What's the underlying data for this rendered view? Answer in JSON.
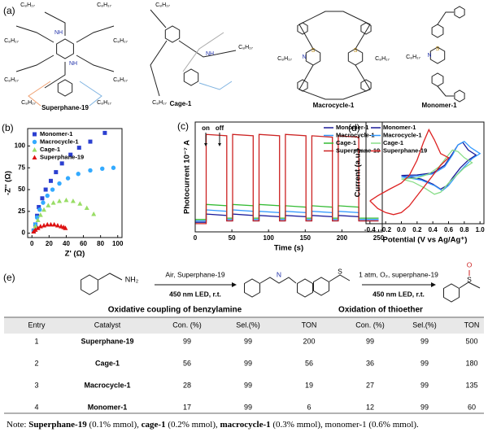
{
  "panel_a": {
    "label": "(a)",
    "substituent": "C₈H₁₇",
    "amine": "NH",
    "heteroatoms": [
      "N",
      "S"
    ],
    "molecules": [
      "Superphane-19",
      "Cage-1",
      "Macrocycle-1",
      "Monomer-1"
    ]
  },
  "chart_data": [
    {
      "type": "scatter",
      "label": "(b)",
      "xlabel": "Z' (Ω)",
      "ylabel": "-Z'' (Ω)",
      "xlim": [
        -5,
        105
      ],
      "ylim": [
        -5,
        120
      ],
      "xticks": [
        0,
        20,
        40,
        60,
        80,
        100
      ],
      "yticks": [
        0,
        25,
        50,
        75,
        100
      ],
      "legend": "upper left",
      "series": [
        {
          "name": "Monomer-1",
          "color": "#2b3fd0",
          "marker": "square",
          "x": [
            2,
            4,
            6,
            8,
            12,
            16,
            22,
            28,
            35,
            45,
            55,
            68,
            85
          ],
          "values": [
            3,
            10,
            20,
            30,
            40,
            50,
            60,
            70,
            80,
            90,
            98,
            105,
            115
          ]
        },
        {
          "name": "Macrocycle-1",
          "color": "#33aaff",
          "marker": "circle",
          "x": [
            2,
            4,
            6,
            9,
            13,
            18,
            24,
            32,
            42,
            54,
            68,
            82,
            95
          ],
          "values": [
            3,
            10,
            18,
            27,
            35,
            43,
            50,
            57,
            63,
            68,
            72,
            74,
            75
          ]
        },
        {
          "name": "Cage-1",
          "color": "#99dd66",
          "marker": "triangle",
          "x": [
            2,
            4,
            7,
            10,
            14,
            19,
            25,
            32,
            40,
            48,
            56,
            64,
            72
          ],
          "values": [
            2,
            8,
            15,
            21,
            27,
            32,
            35,
            37,
            38,
            37,
            34,
            29,
            22
          ]
        },
        {
          "name": "Superphane-19",
          "color": "#dd1111",
          "marker": "triangle",
          "x": [
            2,
            4,
            7,
            10,
            14,
            18,
            22,
            26,
            30,
            34,
            37,
            39
          ],
          "values": [
            2,
            4,
            6,
            8,
            9,
            10,
            10,
            10,
            9,
            8,
            7,
            6
          ]
        }
      ]
    },
    {
      "type": "line",
      "label": "(c)",
      "xlabel": "Time (s)",
      "ylabel": "Photocurrent 10⁻⁷ A",
      "annotations": [
        "on",
        "off"
      ],
      "xlim": [
        0,
        255
      ],
      "ylim": [
        0,
        8
      ],
      "xticks": [
        0,
        50,
        100,
        150,
        200,
        250
      ],
      "yticks": [],
      "legend": "upper right",
      "x": [
        0,
        15,
        15,
        43,
        43,
        51,
        51,
        79,
        79,
        87,
        87,
        115,
        115,
        123,
        123,
        151,
        151,
        159,
        159,
        187,
        187,
        195,
        195,
        223,
        223,
        250
      ],
      "series": [
        {
          "name": "Monomer-1",
          "color": "#1a1a99",
          "values": [
            0.7,
            0.7,
            1.3,
            1.2,
            0.8,
            0.8,
            1.3,
            1.2,
            0.8,
            0.8,
            1.2,
            1.1,
            0.8,
            0.8,
            1.2,
            1.1,
            0.8,
            0.8,
            1.2,
            1.1,
            0.8,
            0.8,
            1.2,
            1.1,
            0.8,
            0.8
          ]
        },
        {
          "name": "Macrocycle-1",
          "color": "#3399ff",
          "values": [
            0.8,
            0.8,
            1.6,
            1.5,
            0.9,
            0.9,
            1.6,
            1.5,
            0.9,
            0.9,
            1.5,
            1.4,
            0.9,
            0.9,
            1.5,
            1.4,
            0.9,
            0.9,
            1.5,
            1.4,
            0.9,
            0.9,
            1.5,
            1.4,
            0.9,
            0.9
          ]
        },
        {
          "name": "Cage-1",
          "color": "#33bb33",
          "values": [
            0.9,
            0.9,
            2.0,
            1.9,
            1.0,
            1.0,
            2.0,
            1.9,
            1.0,
            1.0,
            2.0,
            1.9,
            1.0,
            1.0,
            1.9,
            1.8,
            1.0,
            1.0,
            1.9,
            1.8,
            1.0,
            1.0,
            1.9,
            1.8,
            1.0,
            1.0
          ]
        },
        {
          "name": "Superphane-19",
          "color": "#cc2222",
          "values": [
            0.6,
            0.6,
            7.1,
            7.0,
            0.8,
            0.8,
            7.1,
            7.0,
            0.8,
            0.8,
            7.1,
            7.0,
            0.8,
            0.8,
            7.1,
            7.0,
            0.8,
            0.8,
            7.0,
            6.9,
            0.8,
            0.8,
            7.0,
            6.9,
            0.8,
            0.8
          ]
        }
      ]
    },
    {
      "type": "line",
      "label": "(d)",
      "xlabel": "Potential (V vs Ag/Ag⁺)",
      "ylabel": "Current (a.u.)",
      "xlim": [
        -0.45,
        1.05
      ],
      "ylim": [
        -1,
        1
      ],
      "xticks": [
        -0.4,
        -0.2,
        {
          "value": 0,
          "label": "0.0"
        },
        0.2,
        0.4,
        0.6,
        0.8,
        {
          "value": 1,
          "label": "1.0"
        }
      ],
      "yticks": [],
      "legend": "upper left",
      "series": [
        {
          "name": "Monomer-1",
          "color": "#1a1a99",
          "x": [
            0.0,
            0.2,
            0.4,
            0.55,
            0.65,
            0.72,
            0.78,
            0.85,
            0.95,
            0.85,
            0.75,
            0.65,
            0.58,
            0.5,
            0.4,
            0.25,
            0.1,
            0.0
          ],
          "values": [
            -0.05,
            -0.04,
            0.0,
            0.15,
            0.38,
            0.55,
            0.6,
            0.45,
            0.35,
            0.25,
            0.1,
            -0.1,
            -0.25,
            -0.32,
            -0.22,
            -0.12,
            -0.08,
            -0.05
          ]
        },
        {
          "name": "Macrocycle-1",
          "color": "#3399ff",
          "x": [
            0.0,
            0.2,
            0.4,
            0.55,
            0.65,
            0.72,
            0.8,
            0.88,
            1.0,
            0.9,
            0.8,
            0.7,
            0.6,
            0.52,
            0.42,
            0.25,
            0.1,
            0.0
          ],
          "values": [
            -0.08,
            -0.06,
            -0.02,
            0.12,
            0.35,
            0.55,
            0.62,
            0.5,
            0.38,
            0.28,
            0.12,
            -0.05,
            -0.25,
            -0.35,
            -0.25,
            -0.14,
            -0.1,
            -0.08
          ]
        },
        {
          "name": "Cage-1",
          "color": "#88dd88",
          "x": [
            0.0,
            0.2,
            0.35,
            0.48,
            0.58,
            0.65,
            0.72,
            0.8,
            0.9,
            0.8,
            0.7,
            0.6,
            0.5,
            0.42,
            0.3,
            0.15,
            0.0
          ],
          "values": [
            -0.12,
            -0.1,
            -0.02,
            0.12,
            0.32,
            0.45,
            0.42,
            0.3,
            0.2,
            0.1,
            -0.05,
            -0.2,
            -0.38,
            -0.42,
            -0.3,
            -0.18,
            -0.12
          ]
        },
        {
          "name": "Superphane-19",
          "color": "#dd2222",
          "x": [
            -0.4,
            -0.3,
            -0.15,
            0.0,
            0.1,
            0.2,
            0.28,
            0.35,
            0.42,
            0.5,
            0.6,
            0.5,
            0.4,
            0.3,
            0.2,
            0.1,
            0.0,
            -0.1,
            -0.2,
            -0.3,
            -0.4
          ],
          "values": [
            -0.55,
            -0.45,
            -0.32,
            -0.2,
            -0.05,
            0.25,
            0.6,
            0.85,
            0.65,
            0.38,
            0.3,
            0.15,
            -0.05,
            -0.25,
            -0.45,
            -0.65,
            -0.78,
            -0.82,
            -0.78,
            -0.7,
            -0.55
          ]
        }
      ]
    }
  ],
  "panel_e": {
    "label": "(e)",
    "reaction_1": {
      "reactant_group": "NH₂",
      "condition_top": "Air, Superphane-19",
      "condition_bottom": "450 nm LED, r.t.",
      "product_atom": "N"
    },
    "reaction_2": {
      "reactant_atom": "S",
      "condition_top": "1 atm, O₂, superphane-19",
      "condition_bottom": "450 nm LED, r.t.",
      "product_atoms": [
        "S",
        "O"
      ]
    },
    "table": {
      "group_titles": [
        "Oxidative coupling of benzylamine",
        "Oxidation of thioether"
      ],
      "columns": [
        "Entry",
        "Catalyst",
        "Con. (%)",
        "Sel.(%)",
        "TON",
        "Con. (%)",
        "Sel.(%)",
        "TON"
      ],
      "rows": [
        [
          1,
          "Superphane-19",
          99,
          99,
          200,
          99,
          99,
          500
        ],
        [
          2,
          "Cage-1",
          56,
          99,
          56,
          36,
          99,
          180
        ],
        [
          3,
          "Macrocycle-1",
          28,
          99,
          19,
          27,
          99,
          135
        ],
        [
          4,
          "Monomer-1",
          17,
          99,
          6,
          12,
          99,
          60
        ]
      ]
    }
  },
  "note": [
    {
      "text": "Note: ",
      "bold": false
    },
    {
      "text": "Superphane-19",
      "bold": true
    },
    {
      "text": " (0.1% mmol), ",
      "bold": false
    },
    {
      "text": "cage-1",
      "bold": true
    },
    {
      "text": " (0.2% mmol), ",
      "bold": false
    },
    {
      "text": "macrocycle-1",
      "bold": true
    },
    {
      "text": " (0.3% mmol), monomer-1 (0.6% mmol).",
      "bold": false
    }
  ]
}
